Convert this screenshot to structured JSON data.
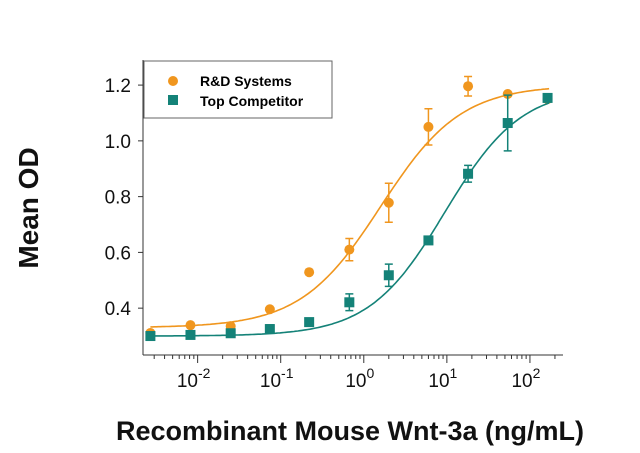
{
  "chart_data": {
    "type": "scatter",
    "xlabel": "Recombinant Mouse Wnt-3a (ng/mL)",
    "ylabel": "Mean OD",
    "xscale": "log",
    "xlim": [
      0.0022,
      250
    ],
    "ylim": [
      0.232,
      1.29
    ],
    "yticks": [
      "0.4",
      "0.6",
      "0.8",
      "1.0",
      "1.2"
    ],
    "xticks": [
      {
        "base": "10",
        "exp": "-2"
      },
      {
        "base": "10",
        "exp": "-1"
      },
      {
        "base": "10",
        "exp": "0"
      },
      {
        "base": "10",
        "exp": "1"
      },
      {
        "base": "10",
        "exp": "2"
      }
    ],
    "legend_position": "top-left",
    "grid": false,
    "x": [
      0.0027,
      0.0082,
      0.025,
      0.074,
      0.22,
      0.67,
      2.0,
      6.0,
      18,
      54,
      163
    ],
    "series": [
      {
        "name": "R&D Systems",
        "color": "#f0961e",
        "marker": "circle",
        "values": [
          0.311,
          0.339,
          0.335,
          0.396,
          0.529,
          0.61,
          0.778,
          1.05,
          1.196,
          1.168,
          1.15
        ],
        "errors": [
          0,
          0,
          0,
          0,
          0,
          0.04,
          0.07,
          0.065,
          0.035,
          0,
          0
        ]
      },
      {
        "name": "Top Competitor",
        "color": "#148278",
        "marker": "square",
        "values": [
          0.3,
          0.304,
          0.31,
          0.325,
          0.35,
          0.421,
          0.518,
          0.643,
          0.882,
          1.064,
          1.154
        ],
        "errors": [
          0.01,
          0,
          0.01,
          0.015,
          0,
          0.03,
          0.04,
          0,
          0.03,
          0.1,
          0.01
        ]
      }
    ]
  }
}
